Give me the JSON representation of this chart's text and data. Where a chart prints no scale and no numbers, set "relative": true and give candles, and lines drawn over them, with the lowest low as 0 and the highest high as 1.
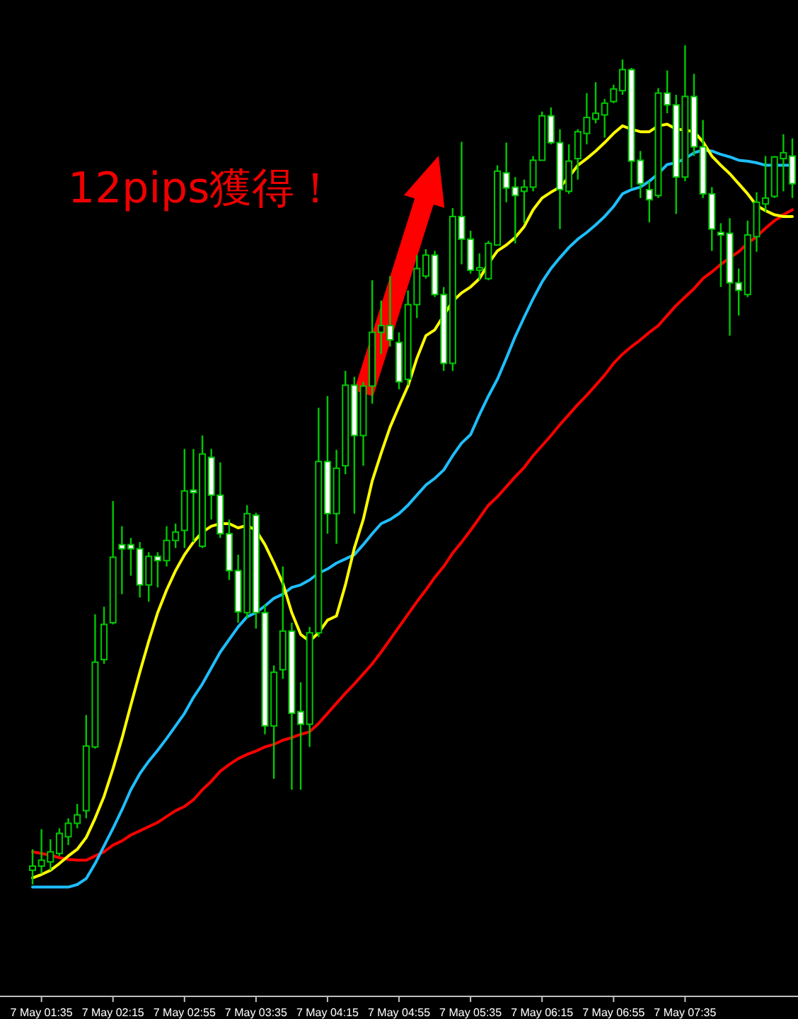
{
  "chart_data": {
    "type": "candlestick",
    "relative": true,
    "categories": [
      null,
      "7 May 01:35",
      null,
      null,
      null,
      null,
      null,
      null,
      null,
      "7 May 02:15",
      null,
      null,
      null,
      null,
      null,
      null,
      null,
      "7 May 02:55",
      null,
      null,
      null,
      null,
      null,
      null,
      null,
      "7 May 03:35",
      null,
      null,
      null,
      null,
      null,
      null,
      null,
      "7 May 04:15",
      null,
      null,
      null,
      null,
      null,
      null,
      null,
      "7 May 04:55",
      null,
      null,
      null,
      null,
      null,
      null,
      null,
      "7 May 05:35",
      null,
      null,
      null,
      null,
      null,
      null,
      null,
      "7 May 06:15",
      null,
      null,
      null,
      null,
      null,
      null,
      null,
      "7 May 06:55",
      null,
      null,
      null,
      null,
      null,
      null,
      null,
      "7 May 07:35",
      null,
      null,
      null,
      null,
      null,
      null,
      null,
      null,
      null,
      null,
      null,
      null
    ],
    "annotations": [
      "12pips獲得！"
    ],
    "series": [
      {
        "type": "line",
        "color": "#ff0000",
        "values": [
          0.039,
          0.037,
          0.035,
          0.032,
          0.03,
          0.029,
          0.029,
          0.034,
          0.039,
          0.047,
          0.052,
          0.059,
          0.064,
          0.069,
          0.074,
          0.081,
          0.088,
          0.093,
          0.101,
          0.113,
          0.123,
          0.135,
          0.143,
          0.15,
          0.155,
          0.159,
          0.164,
          0.167,
          0.172,
          0.175,
          0.179,
          0.182,
          0.192,
          0.204,
          0.216,
          0.228,
          0.239,
          0.251,
          0.263,
          0.277,
          0.292,
          0.307,
          0.322,
          0.337,
          0.351,
          0.366,
          0.379,
          0.395,
          0.408,
          0.422,
          0.437,
          0.452,
          0.462,
          0.474,
          0.486,
          0.497,
          0.511,
          0.523,
          0.535,
          0.548,
          0.56,
          0.572,
          0.583,
          0.595,
          0.607,
          0.621,
          0.632,
          0.641,
          0.649,
          0.658,
          0.666,
          0.678,
          0.69,
          0.7,
          0.71,
          0.722,
          0.73,
          0.739,
          0.747,
          0.754,
          0.764,
          0.772,
          0.782,
          0.791,
          0.798,
          0.804
        ]
      },
      {
        "type": "line",
        "color": "#1ebeff",
        "values": [
          -0.003,
          -0.003,
          -0.003,
          -0.003,
          -0.003,
          0,
          0.007,
          0.025,
          0.046,
          0.067,
          0.089,
          0.113,
          0.132,
          0.147,
          0.16,
          0.174,
          0.189,
          0.204,
          0.223,
          0.239,
          0.258,
          0.277,
          0.292,
          0.307,
          0.319,
          0.324,
          0.332,
          0.341,
          0.346,
          0.354,
          0.357,
          0.363,
          0.371,
          0.376,
          0.383,
          0.388,
          0.393,
          0.405,
          0.418,
          0.43,
          0.435,
          0.442,
          0.452,
          0.464,
          0.476,
          0.484,
          0.494,
          0.511,
          0.526,
          0.536,
          0.56,
          0.582,
          0.602,
          0.627,
          0.653,
          0.676,
          0.698,
          0.718,
          0.734,
          0.747,
          0.759,
          0.769,
          0.777,
          0.786,
          0.796,
          0.808,
          0.823,
          0.828,
          0.831,
          0.838,
          0.847,
          0.858,
          0.86,
          0.865,
          0.872,
          0.875,
          0.874,
          0.87,
          0.867,
          0.863,
          0.862,
          0.86,
          0.857,
          0.857,
          0.857,
          0.857
        ]
      },
      {
        "type": "line",
        "color": "#ffff00",
        "values": [
          0.008,
          0.012,
          0.017,
          0.025,
          0.034,
          0.042,
          0.056,
          0.079,
          0.105,
          0.138,
          0.174,
          0.214,
          0.253,
          0.29,
          0.324,
          0.351,
          0.374,
          0.393,
          0.408,
          0.42,
          0.427,
          0.43,
          0.43,
          0.425,
          0.428,
          0.422,
          0.405,
          0.383,
          0.359,
          0.324,
          0.298,
          0.29,
          0.3,
          0.315,
          0.32,
          0.357,
          0.401,
          0.435,
          0.481,
          0.514,
          0.545,
          0.57,
          0.594,
          0.627,
          0.654,
          0.661,
          0.678,
          0.695,
          0.705,
          0.712,
          0.722,
          0.74,
          0.755,
          0.762,
          0.771,
          0.784,
          0.804,
          0.818,
          0.825,
          0.831,
          0.843,
          0.857,
          0.865,
          0.874,
          0.884,
          0.895,
          0.904,
          0.9,
          0.897,
          0.897,
          0.904,
          0.906,
          0.9,
          0.899,
          0.897,
          0.885,
          0.868,
          0.857,
          0.847,
          0.835,
          0.823,
          0.809,
          0.803,
          0.798,
          0.796,
          0.796
        ]
      }
    ],
    "ohlc": [
      [
        0.017,
        0.042,
        0,
        0.022
      ],
      [
        0.022,
        0.066,
        0.013,
        0.029
      ],
      [
        0.027,
        0.054,
        0.017,
        0.039
      ],
      [
        0.037,
        0.067,
        0.034,
        0.061
      ],
      [
        0.057,
        0.079,
        0.047,
        0.073
      ],
      [
        0.073,
        0.096,
        0.067,
        0.083
      ],
      [
        0.088,
        0.202,
        0.079,
        0.165
      ],
      [
        0.164,
        0.322,
        0.162,
        0.265
      ],
      [
        0.268,
        0.331,
        0.263,
        0.31
      ],
      [
        0.312,
        0.457,
        0.31,
        0.39
      ],
      [
        0.405,
        0.427,
        0.346,
        0.4
      ],
      [
        0.405,
        0.413,
        0.368,
        0.4
      ],
      [
        0.4,
        0.408,
        0.342,
        0.357
      ],
      [
        0.357,
        0.396,
        0.337,
        0.391
      ],
      [
        0.391,
        0.396,
        0.354,
        0.386
      ],
      [
        0.386,
        0.427,
        0.379,
        0.41
      ],
      [
        0.41,
        0.43,
        0.401,
        0.42
      ],
      [
        0.422,
        0.519,
        0.401,
        0.469
      ],
      [
        0.47,
        0.519,
        0.408,
        0.467
      ],
      [
        0.403,
        0.535,
        0.401,
        0.513
      ],
      [
        0.509,
        0.519,
        0.435,
        0.464
      ],
      [
        0.464,
        0.503,
        0.413,
        0.418
      ],
      [
        0.418,
        0.435,
        0.363,
        0.374
      ],
      [
        0.374,
        0.393,
        0.312,
        0.325
      ],
      [
        0.324,
        0.452,
        0.317,
        0.442
      ],
      [
        0.44,
        0.443,
        0.305,
        0.324
      ],
      [
        0.324,
        0.334,
        0.179,
        0.189
      ],
      [
        0.189,
        0.261,
        0.126,
        0.253
      ],
      [
        0.256,
        0.379,
        0.245,
        0.302
      ],
      [
        0.302,
        0.312,
        0.113,
        0.204
      ],
      [
        0.206,
        0.241,
        0.113,
        0.191
      ],
      [
        0.191,
        0.307,
        0.164,
        0.3
      ],
      [
        0.3,
        0.568,
        0.295,
        0.504
      ],
      [
        0.504,
        0.582,
        0.418,
        0.442
      ],
      [
        0.442,
        0.518,
        0.406,
        0.496
      ],
      [
        0.499,
        0.612,
        0.489,
        0.595
      ],
      [
        0.595,
        0.605,
        0.442,
        0.535
      ],
      [
        0.535,
        0.599,
        0.499,
        0.594
      ],
      [
        0.594,
        0.72,
        0.573,
        0.658
      ],
      [
        0.658,
        0.696,
        0.632,
        0.666
      ],
      [
        0.666,
        0.725,
        0.641,
        0.649
      ],
      [
        0.646,
        0.658,
        0.59,
        0.599
      ],
      [
        0.602,
        0.708,
        0.595,
        0.691
      ],
      [
        0.691,
        0.75,
        0.675,
        0.734
      ],
      [
        0.725,
        0.757,
        0.722,
        0.75
      ],
      [
        0.75,
        0.755,
        0.7,
        0.703
      ],
      [
        0.703,
        0.712,
        0.612,
        0.621
      ],
      [
        0.621,
        0.806,
        0.612,
        0.796
      ],
      [
        0.796,
        0.885,
        0.739,
        0.769
      ],
      [
        0.769,
        0.779,
        0.728,
        0.732
      ],
      [
        0.732,
        0.752,
        0.72,
        0.735
      ],
      [
        0.722,
        0.767,
        0.72,
        0.764
      ],
      [
        0.762,
        0.857,
        0.762,
        0.85
      ],
      [
        0.848,
        0.884,
        0.813,
        0.83
      ],
      [
        0.831,
        0.843,
        0.764,
        0.821
      ],
      [
        0.826,
        0.84,
        0.788,
        0.831
      ],
      [
        0.831,
        0.868,
        0.826,
        0.863
      ],
      [
        0.863,
        0.921,
        0.863,
        0.916
      ],
      [
        0.916,
        0.926,
        0.882,
        0.884
      ],
      [
        0.884,
        0.9,
        0.781,
        0.828
      ],
      [
        0.826,
        0.882,
        0.823,
        0.862
      ],
      [
        0.865,
        0.9,
        0.84,
        0.897
      ],
      [
        0.895,
        0.943,
        0.882,
        0.914
      ],
      [
        0.912,
        0.956,
        0.907,
        0.919
      ],
      [
        0.917,
        0.936,
        0.89,
        0.931
      ],
      [
        0.933,
        0.953,
        0.931,
        0.948
      ],
      [
        0.946,
        0.983,
        0.941,
        0.971
      ],
      [
        0.971,
        0.973,
        0.83,
        0.862
      ],
      [
        0.863,
        0.874,
        0.818,
        0.835
      ],
      [
        0.828,
        0.838,
        0.789,
        0.816
      ],
      [
        0.821,
        0.949,
        0.818,
        0.943
      ],
      [
        0.943,
        0.97,
        0.919,
        0.929
      ],
      [
        0.929,
        0.941,
        0.799,
        0.843
      ],
      [
        0.843,
        1,
        0.838,
        0.939
      ],
      [
        0.939,
        0.966,
        0.868,
        0.879
      ],
      [
        0.879,
        0.911,
        0.818,
        0.823
      ],
      [
        0.823,
        0.831,
        0.755,
        0.781
      ],
      [
        0.777,
        0.788,
        0.712,
        0.774
      ],
      [
        0.776,
        0.794,
        0.654,
        0.717
      ],
      [
        0.717,
        0.734,
        0.678,
        0.708
      ],
      [
        0.703,
        0.791,
        0.7,
        0.774
      ],
      [
        0.772,
        0.825,
        0.754,
        0.813
      ],
      [
        0.811,
        0.868,
        0.801,
        0.818
      ],
      [
        0.82,
        0.868,
        0.818,
        0.867
      ],
      [
        0.865,
        0.894,
        0.826,
        0.872
      ],
      [
        0.868,
        0.889,
        0.818,
        0.835
      ]
    ]
  }
}
